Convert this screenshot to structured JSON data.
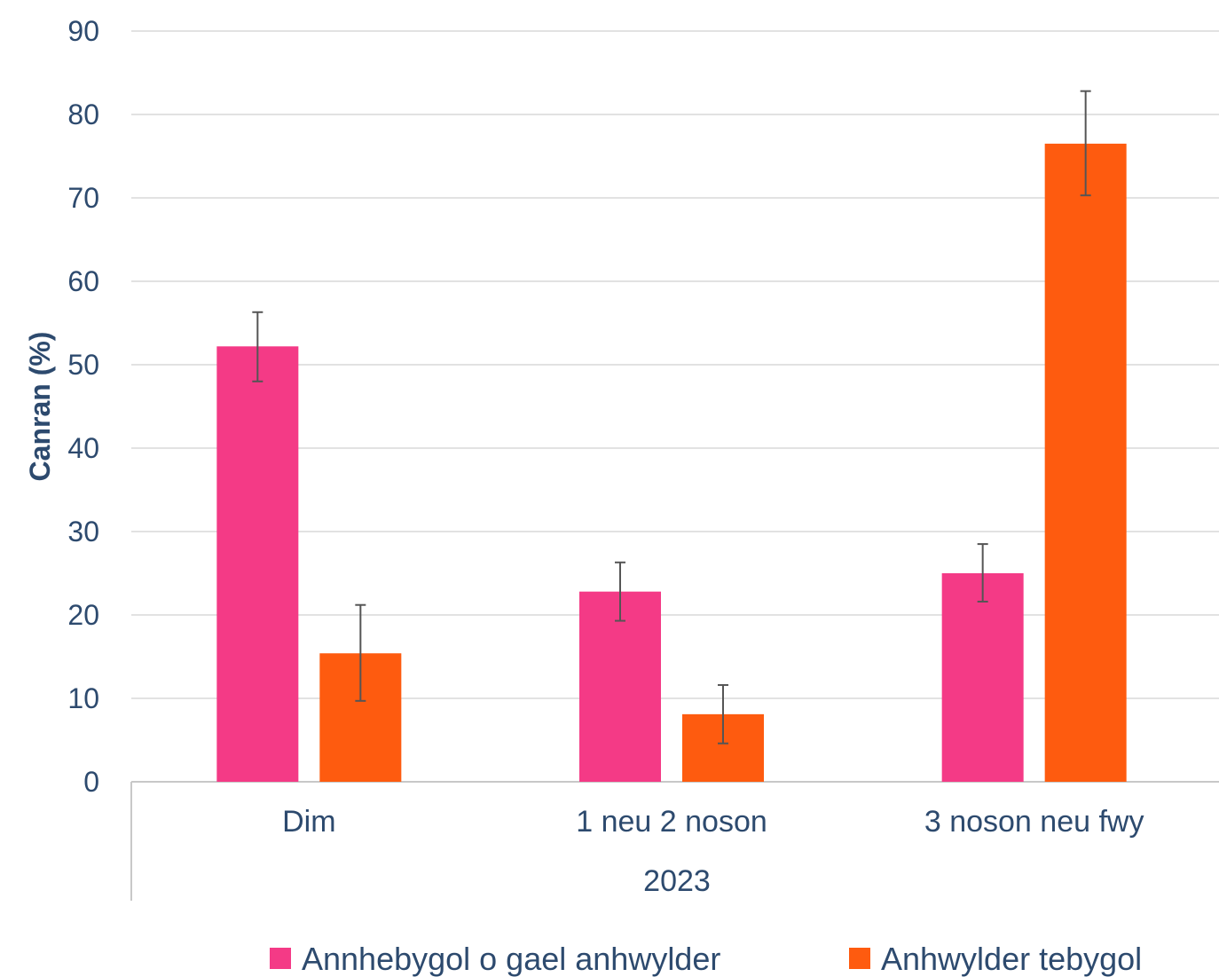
{
  "chart_data": {
    "type": "bar",
    "categories": [
      "Dim",
      "1 neu 2 noson",
      "3 noson neu fwy"
    ],
    "group_label": "2023",
    "ylabel": "Canran (%)",
    "xlabel": "",
    "ylim": [
      0,
      90
    ],
    "yticks": [
      "0",
      "10",
      "20",
      "30",
      "40",
      "50",
      "60",
      "70",
      "80",
      "90"
    ],
    "grid": true,
    "legend_position": "bottom",
    "series": [
      {
        "name": "Annhebygol o gael anhwylder",
        "color": "#f43a86",
        "values": [
          52.2,
          22.8,
          25.0
        ],
        "error_low": [
          48.0,
          19.3,
          21.6
        ],
        "error_high": [
          56.3,
          26.3,
          28.5
        ]
      },
      {
        "name": "Anhwylder tebygol",
        "color": "#fe5b0f",
        "values": [
          15.4,
          8.1,
          76.5
        ],
        "error_low": [
          9.7,
          4.6,
          70.3
        ],
        "error_high": [
          21.2,
          11.6,
          82.8
        ]
      }
    ]
  }
}
